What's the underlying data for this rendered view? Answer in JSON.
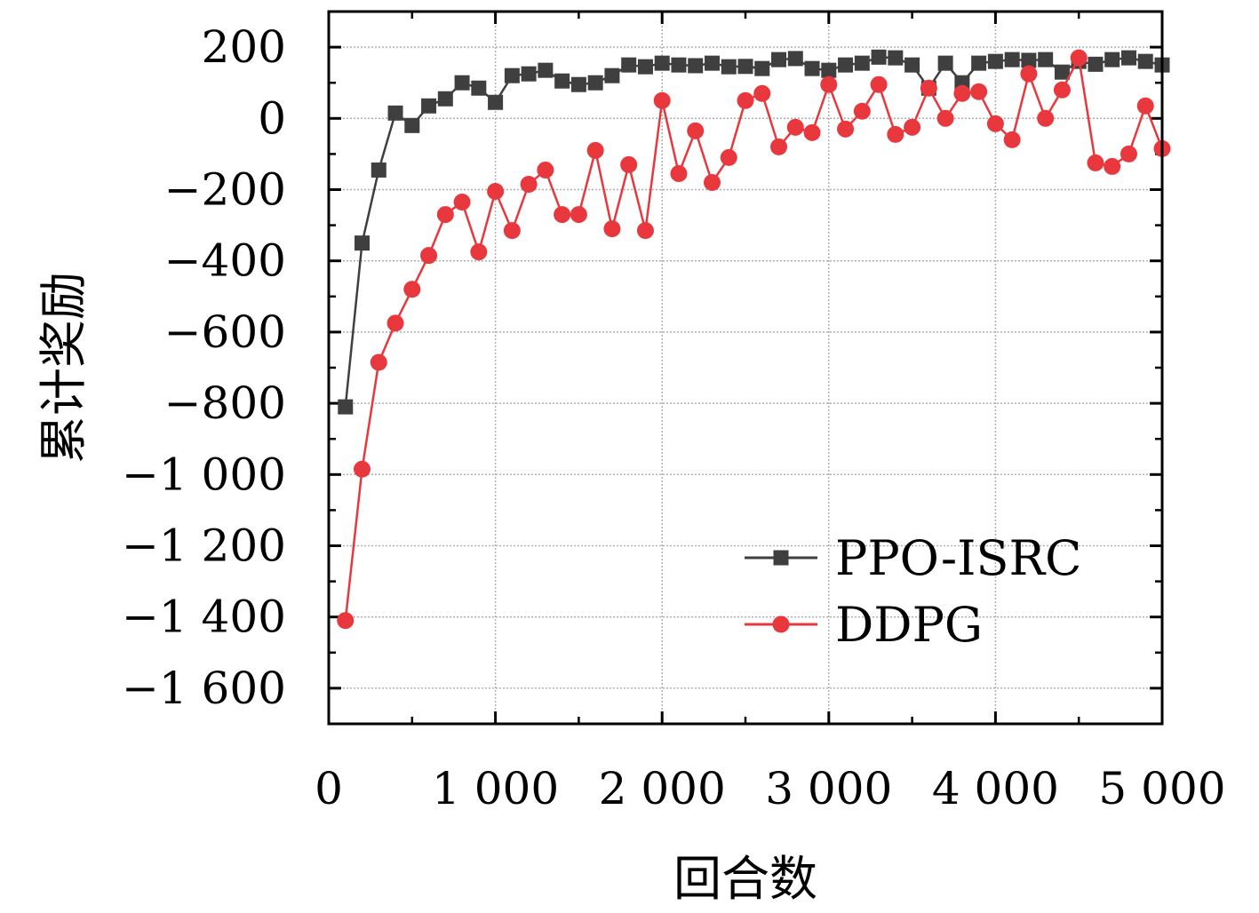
{
  "chart_data": {
    "type": "line",
    "title": "",
    "xlabel": "回合数",
    "ylabel": "累计奖励",
    "xlim": [
      0,
      5000
    ],
    "ylim": [
      -1700,
      300
    ],
    "xticks": [
      0,
      1000,
      2000,
      3000,
      4000,
      5000
    ],
    "xtick_labels": [
      "0",
      "1 000",
      "2 000",
      "3 000",
      "4 000",
      "5 000"
    ],
    "yticks": [
      200,
      0,
      -200,
      -400,
      -600,
      -800,
      -1000,
      -1200,
      -1400,
      -1600
    ],
    "ytick_labels": [
      "200",
      "0",
      "−200",
      "−400",
      "−600",
      "−800",
      "−1 000",
      "−1 200",
      "−1 400",
      "−1 600"
    ],
    "grid": true,
    "legend_position": "lower-right",
    "x": [
      100,
      200,
      300,
      400,
      500,
      600,
      700,
      800,
      900,
      1000,
      1100,
      1200,
      1300,
      1400,
      1500,
      1600,
      1700,
      1800,
      1900,
      2000,
      2100,
      2200,
      2300,
      2400,
      2500,
      2600,
      2700,
      2800,
      2900,
      3000,
      3100,
      3200,
      3300,
      3400,
      3500,
      3600,
      3700,
      3800,
      3900,
      4000,
      4100,
      4200,
      4300,
      4400,
      4500,
      4600,
      4700,
      4800,
      4900,
      5000
    ],
    "series": [
      {
        "name": "PPO-ISRC",
        "color": "#3f3f3f",
        "marker": "square",
        "values": [
          -810,
          -350,
          -145,
          15,
          -20,
          35,
          55,
          100,
          85,
          45,
          120,
          125,
          135,
          105,
          95,
          100,
          120,
          150,
          145,
          155,
          150,
          148,
          155,
          145,
          146,
          140,
          165,
          168,
          140,
          135,
          150,
          155,
          172,
          170,
          150,
          85,
          155,
          100,
          155,
          160,
          165,
          163,
          165,
          130,
          160,
          152,
          165,
          170,
          160,
          150
        ]
      },
      {
        "name": "DDPG",
        "color": "#e8383d",
        "marker": "circle",
        "values": [
          -1410,
          -985,
          -685,
          -575,
          -480,
          -385,
          -270,
          -235,
          -375,
          -205,
          -315,
          -185,
          -145,
          -270,
          -270,
          -90,
          -310,
          -130,
          -315,
          50,
          -155,
          -35,
          -180,
          -110,
          50,
          70,
          -80,
          -25,
          -40,
          95,
          -30,
          20,
          95,
          -45,
          -25,
          85,
          0,
          70,
          75,
          -15,
          -60,
          125,
          0,
          80,
          170,
          -125,
          -135,
          -100,
          35,
          -85
        ]
      }
    ]
  }
}
